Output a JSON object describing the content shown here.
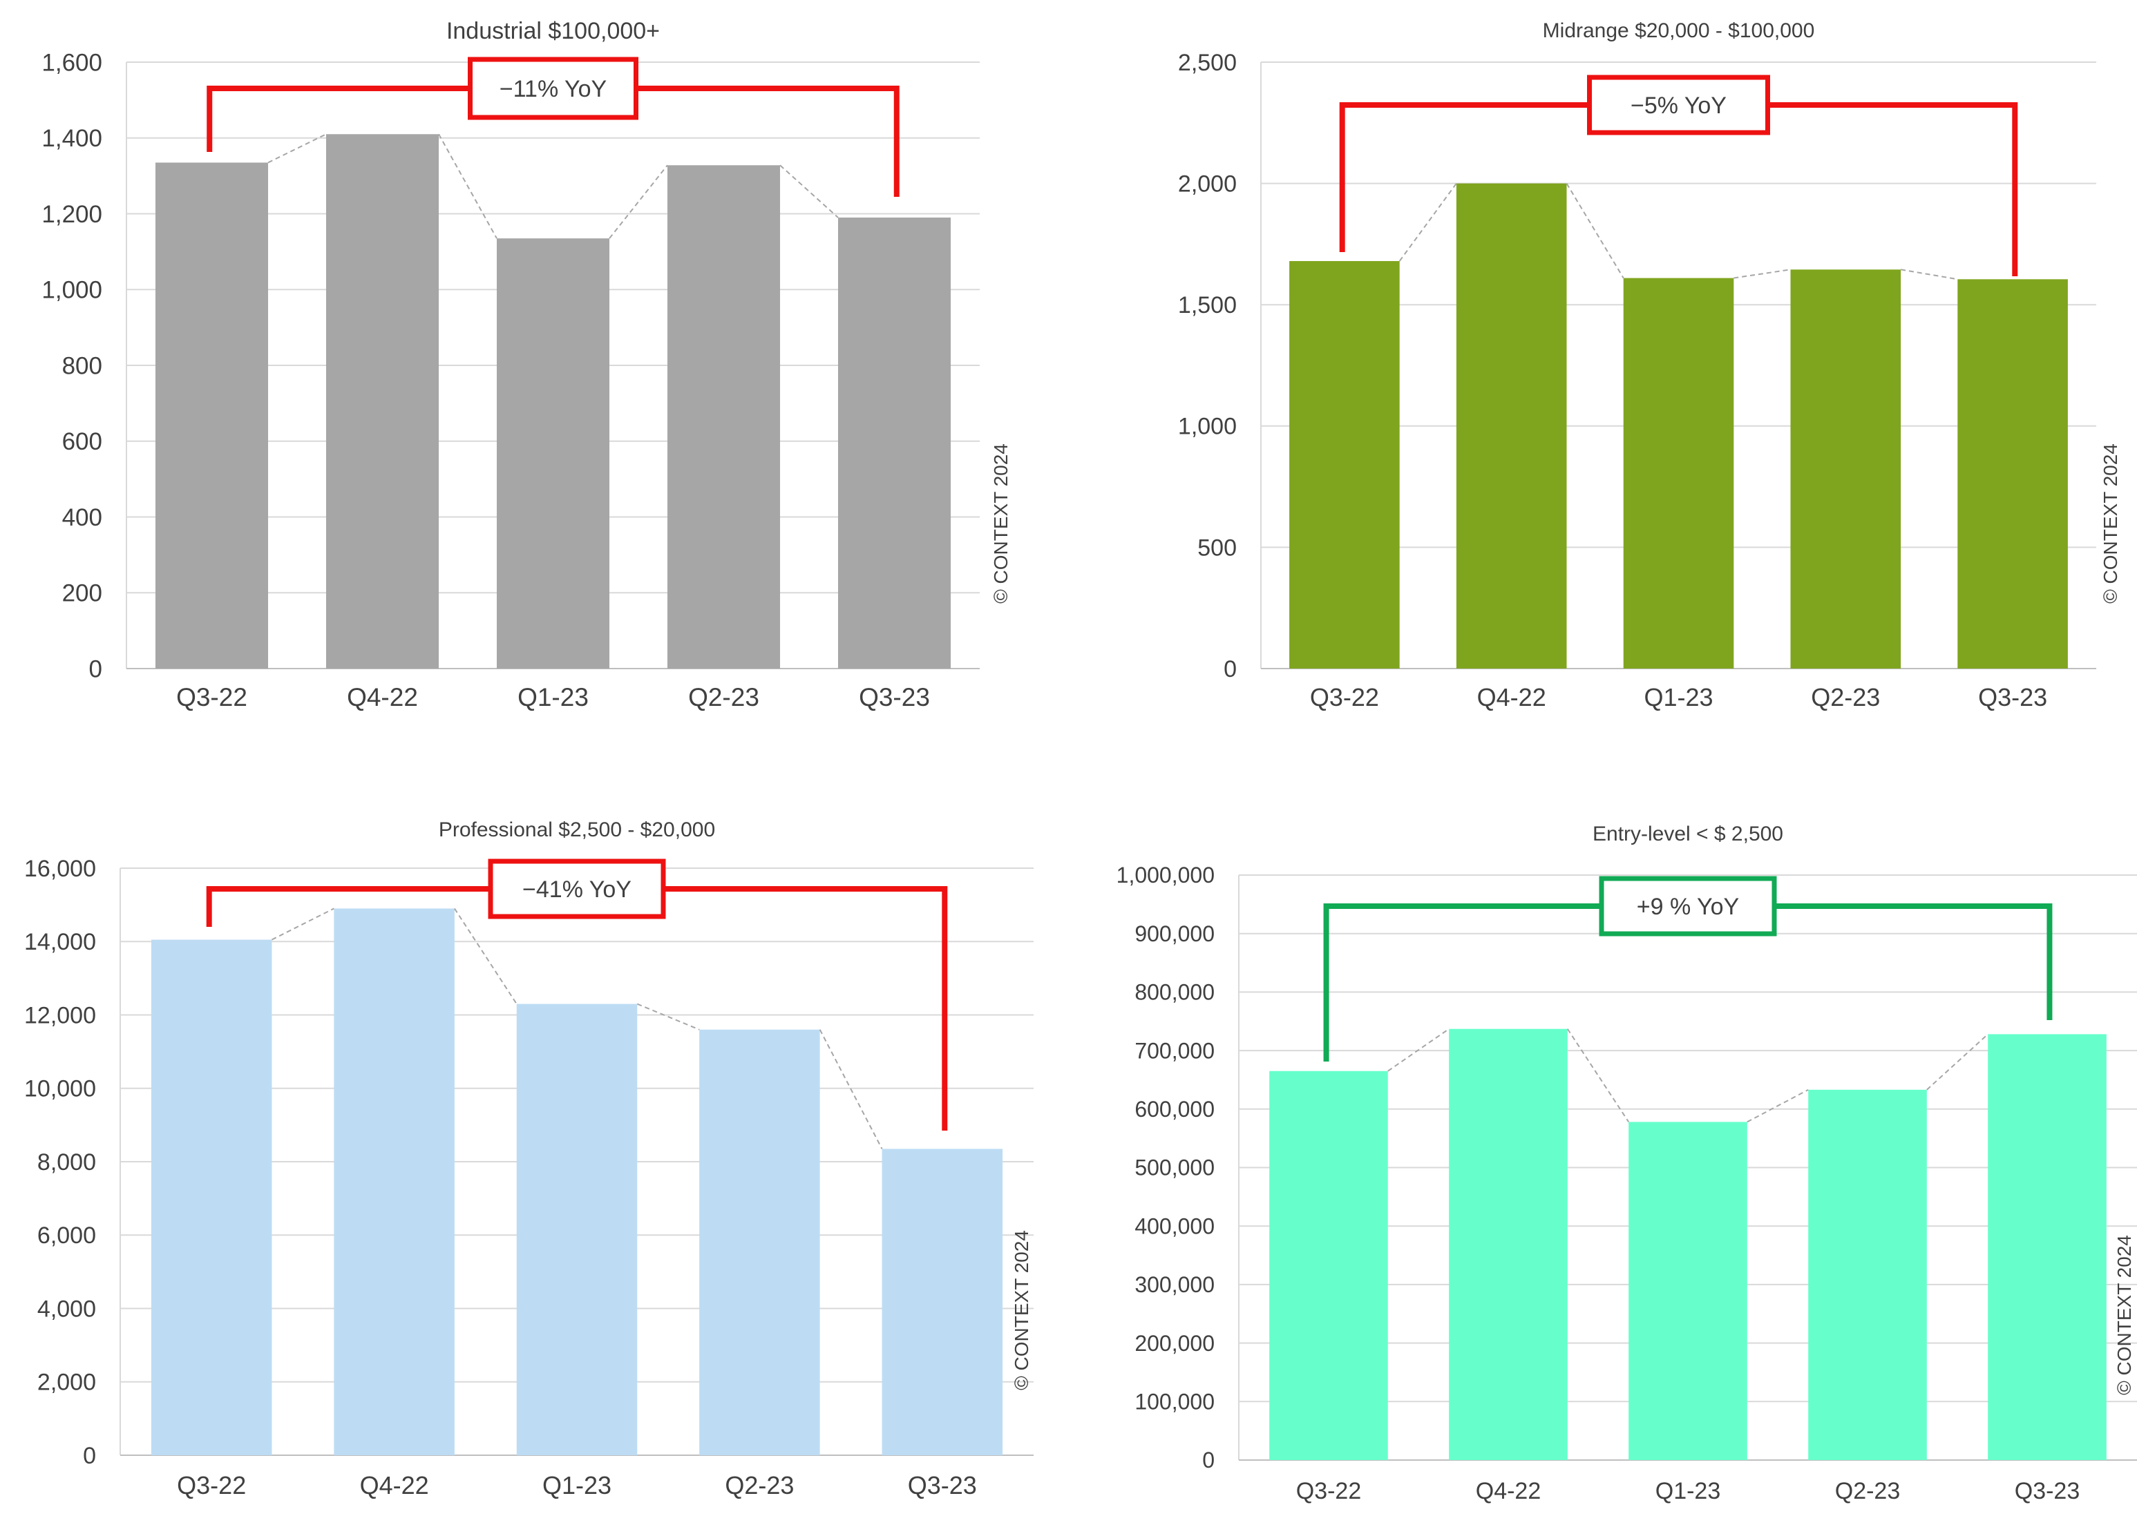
{
  "chart_data": [
    {
      "type": "bar",
      "title": "Industrial $100,000+",
      "categories": [
        "Q3-22",
        "Q4-22",
        "Q1-23",
        "Q2-23",
        "Q3-23"
      ],
      "values": [
        1335,
        1410,
        1135,
        1328,
        1190
      ],
      "ylim": [
        0,
        1600
      ],
      "yticks": [
        0,
        200,
        400,
        600,
        800,
        1000,
        1200,
        1400,
        1600
      ],
      "ytick_labels": [
        "0",
        "200",
        "400",
        "600",
        "800",
        "1,000",
        "1,200",
        "1,400",
        "1,600"
      ],
      "grid": true,
      "bar_color": "#a6a6a6",
      "annotation": {
        "text": "−11% YoY",
        "color": "#ee1111",
        "from": "Q3-22",
        "to": "Q3-23"
      },
      "credit": "© CONTEXT 2024"
    },
    {
      "type": "bar",
      "title": "Midrange $20,000 - $100,000",
      "categories": [
        "Q3-22",
        "Q4-22",
        "Q1-23",
        "Q2-23",
        "Q3-23"
      ],
      "values": [
        1680,
        2000,
        1610,
        1645,
        1605
      ],
      "ylim": [
        0,
        2500
      ],
      "yticks": [
        0,
        500,
        1000,
        1500,
        2000,
        2500
      ],
      "ytick_labels": [
        "0",
        "500",
        "1,000",
        "1,500",
        "2,000",
        "2,500"
      ],
      "grid": true,
      "bar_color": "#7fa51e",
      "annotation": {
        "text": "−5% YoY",
        "color": "#ee1111",
        "from": "Q3-22",
        "to": "Q3-23"
      },
      "credit": "© CONTEXT 2024"
    },
    {
      "type": "bar",
      "title": "Professional $2,500 - $20,000",
      "categories": [
        "Q3-22",
        "Q4-22",
        "Q1-23",
        "Q2-23",
        "Q3-23"
      ],
      "values": [
        14050,
        14900,
        12300,
        11600,
        8350
      ],
      "ylim": [
        0,
        16000
      ],
      "yticks": [
        0,
        2000,
        4000,
        6000,
        8000,
        10000,
        12000,
        14000,
        16000
      ],
      "ytick_labels": [
        "0",
        "2,000",
        "4,000",
        "6,000",
        "8,000",
        "10,000",
        "12,000",
        "14,000",
        "16,000"
      ],
      "grid": true,
      "bar_color": "#bddcf4",
      "annotation": {
        "text": "−41% YoY",
        "color": "#ee1111",
        "from": "Q3-22",
        "to": "Q3-23"
      },
      "credit": "© CONTEXT 2024"
    },
    {
      "type": "bar",
      "title": "Entry-level < $ 2,500",
      "categories": [
        "Q3-22",
        "Q4-22",
        "Q1-23",
        "Q2-23",
        "Q3-23"
      ],
      "values": [
        665000,
        737000,
        578000,
        633000,
        728000
      ],
      "ylim": [
        0,
        1000000
      ],
      "yticks": [
        0,
        100000,
        200000,
        300000,
        400000,
        500000,
        600000,
        700000,
        800000,
        900000,
        1000000
      ],
      "ytick_labels": [
        "0",
        "100,000",
        "200,000",
        "300,000",
        "400,000",
        "500,000",
        "600,000",
        "700,000",
        "800,000",
        "900,000",
        "1,000,000"
      ],
      "grid": true,
      "bar_color": "#66ffcc",
      "annotation": {
        "text": "+9 % YoY",
        "color": "#11aa55",
        "from": "Q3-22",
        "to": "Q3-23"
      },
      "credit": "© CONTEXT 2024"
    }
  ]
}
